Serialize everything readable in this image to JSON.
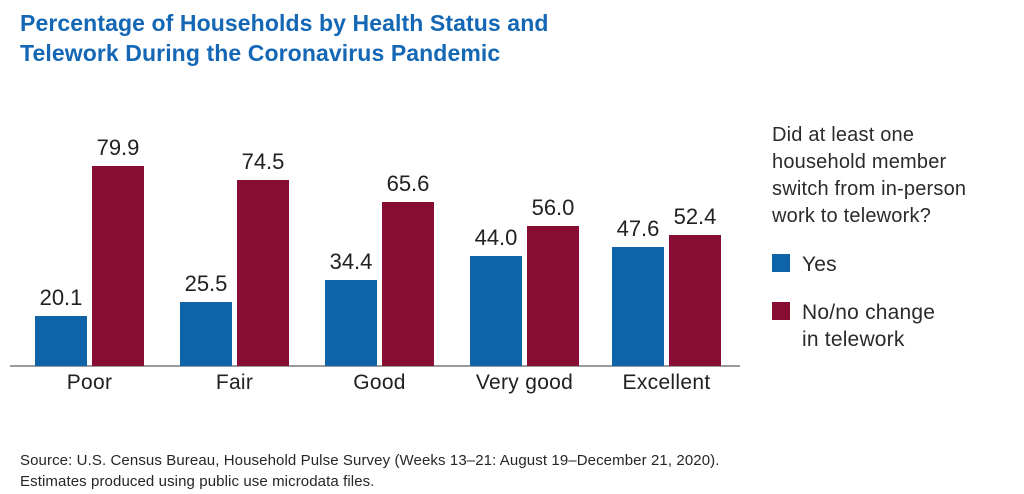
{
  "title": "Percentage of Households by Health Status and\nTelework During the Coronavirus Pandemic",
  "chart_data": {
    "type": "bar",
    "categories": [
      "Poor",
      "Fair",
      "Good",
      "Very good",
      "Excellent"
    ],
    "series": [
      {
        "name": "Yes",
        "color": "#0F63A8",
        "values": [
          20.1,
          25.5,
          34.4,
          44.0,
          47.6
        ]
      },
      {
        "name": "No/no change in telework",
        "color": "#870D33",
        "values": [
          79.9,
          74.5,
          65.6,
          56.0,
          52.4
        ]
      }
    ],
    "title": "Percentage of Households by Health Status and Telework During the Coronavirus Pandemic",
    "xlabel": "",
    "ylabel": "",
    "ylim": [
      0,
      100
    ],
    "grid": false,
    "value_labels": true,
    "value_label_format": "one_decimal",
    "legend_position": "right"
  },
  "legend": {
    "question": "Did at least one\nhousehold member\nswitch from in-person\nwork to telework?",
    "items": [
      {
        "label": "Yes",
        "color": "#0F63A8"
      },
      {
        "label": "No/no change\nin telework",
        "color": "#870D33"
      }
    ]
  },
  "source": "Source: U.S. Census Bureau, Household Pulse Survey (Weeks 13–21: August 19–December 21, 2020).\nEstimates produced using public use microdata files.",
  "colors": {
    "title_blue": "#1467B4",
    "bar_yes_blue": "#0F63A8",
    "bar_no_red": "#870D33",
    "axis_gray": "#9b9b9b",
    "text_dark": "#212121"
  }
}
